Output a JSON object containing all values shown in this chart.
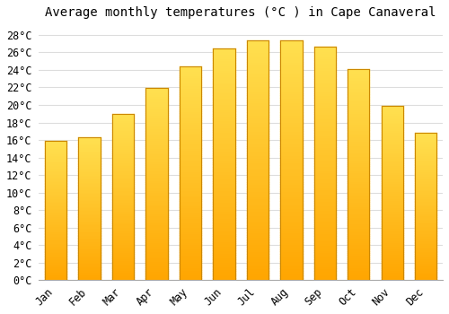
{
  "title": "Average monthly temperatures (°C ) in Cape Canaveral",
  "months": [
    "Jan",
    "Feb",
    "Mar",
    "Apr",
    "May",
    "Jun",
    "Jul",
    "Aug",
    "Sep",
    "Oct",
    "Nov",
    "Dec"
  ],
  "values": [
    15.9,
    16.3,
    19.0,
    21.9,
    24.4,
    26.4,
    27.4,
    27.4,
    26.7,
    24.1,
    19.9,
    16.8
  ],
  "bar_color_top": "#FFD966",
  "bar_color_bottom": "#FFA500",
  "bar_edge_color": "#CC8800",
  "background_color": "#FFFFFF",
  "grid_color": "#DDDDDD",
  "ylim": [
    0,
    29
  ],
  "yticks": [
    0,
    2,
    4,
    6,
    8,
    10,
    12,
    14,
    16,
    18,
    20,
    22,
    24,
    26,
    28
  ],
  "title_fontsize": 10,
  "tick_fontsize": 8.5,
  "bar_width": 0.65
}
